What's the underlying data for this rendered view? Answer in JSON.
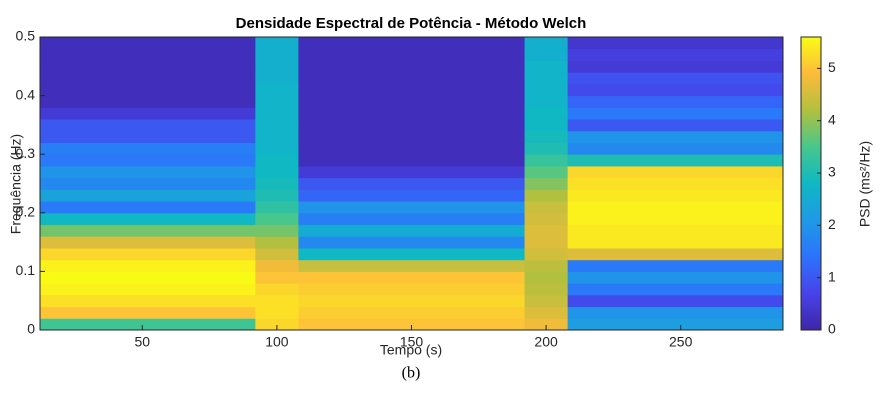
{
  "chart_data": {
    "type": "heatmap",
    "title": "Densidade Espectral de Potência - Método Welch",
    "x_label": "Tempo (s)",
    "y_label": "Frequência (Hz)",
    "colorbar_label": "PSD (ms²/Hz)",
    "caption": "(b)",
    "x_edges": [
      12,
      92,
      108,
      192,
      208,
      288
    ],
    "y_edges": [
      0,
      0.02,
      0.04,
      0.06,
      0.08,
      0.1,
      0.12,
      0.14,
      0.16,
      0.18,
      0.2,
      0.22,
      0.24,
      0.26,
      0.28,
      0.3,
      0.32,
      0.34,
      0.36,
      0.38,
      0.4,
      0.42,
      0.44,
      0.46,
      0.48,
      0.5
    ],
    "values": [
      [
        3.4,
        5.0,
        5.3,
        5.5,
        5.6,
        5.5,
        5.2,
        4.6,
        3.8,
        2.8,
        1.5,
        2.3,
        1.8,
        2.0,
        1.5,
        1.6,
        1.0,
        1.0,
        0.5,
        0.2,
        0.2,
        0.2,
        0.2,
        0.2,
        0.2
      ],
      [
        5.2,
        5.3,
        5.3,
        5.2,
        5.0,
        4.8,
        4.5,
        4.2,
        3.8,
        3.5,
        3.2,
        3.0,
        2.9,
        2.8,
        2.8,
        2.7,
        2.7,
        2.7,
        2.7,
        2.7,
        2.7,
        2.6,
        2.6,
        2.6,
        2.6
      ],
      [
        5.0,
        5.1,
        5.2,
        5.1,
        5.0,
        4.4,
        2.8,
        1.8,
        2.5,
        1.6,
        2.0,
        1.2,
        1.0,
        0.5,
        0.2,
        0.2,
        0.2,
        0.2,
        0.2,
        0.2,
        0.2,
        0.2,
        0.2,
        0.2,
        0.2
      ],
      [
        4.8,
        4.6,
        4.4,
        4.3,
        4.2,
        4.3,
        4.5,
        4.6,
        4.6,
        4.5,
        4.4,
        4.2,
        3.9,
        3.6,
        3.3,
        3.0,
        2.9,
        2.8,
        2.8,
        2.7,
        2.7,
        2.7,
        2.7,
        2.6,
        2.6
      ],
      [
        2.2,
        2.0,
        0.8,
        1.5,
        2.0,
        1.5,
        4.6,
        5.4,
        5.4,
        5.5,
        5.5,
        5.4,
        5.3,
        5.2,
        3.0,
        1.8,
        2.0,
        1.0,
        1.5,
        1.2,
        0.8,
        0.9,
        0.5,
        0.6,
        0.4
      ]
    ],
    "xlim": [
      12,
      288
    ],
    "xticks": [
      50,
      100,
      150,
      200,
      250
    ],
    "ylim": [
      0,
      0.5
    ],
    "yticks": [
      0,
      0.1,
      0.2,
      0.3,
      0.4,
      0.5
    ],
    "clim": [
      0,
      5.6
    ],
    "cticks": [
      0,
      1,
      2,
      3,
      4,
      5
    ],
    "colormap": "parula"
  }
}
